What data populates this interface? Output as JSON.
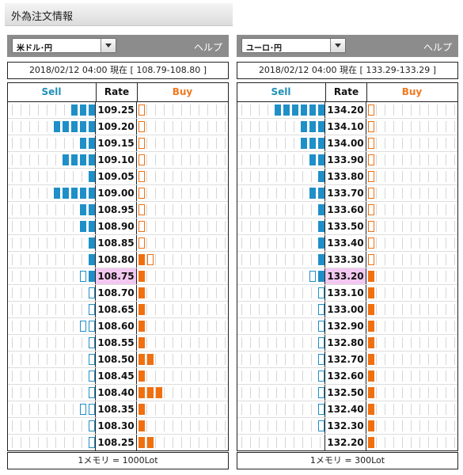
{
  "page_title": "外為注文情報",
  "colors": {
    "sell": "#1f8fc8",
    "buy": "#f07010",
    "current_rate_bg": "#f3c8f0"
  },
  "panels": [
    {
      "pair": "米ドル･円",
      "help": "ヘルプ",
      "status": "2018/02/12  04:00 現在 [ 108.79-108.80 ]",
      "headers": {
        "sell": "Sell",
        "rate": "Rate",
        "buy": "Buy"
      },
      "footer": "1メモリ = 1000Lot",
      "rows": [
        {
          "rate": "109.25",
          "sell": 3,
          "sell_partial": false,
          "buy": 0,
          "buy_partial": true,
          "current": false
        },
        {
          "rate": "109.20",
          "sell": 5,
          "sell_partial": false,
          "buy": 0,
          "buy_partial": true,
          "current": false
        },
        {
          "rate": "109.15",
          "sell": 2,
          "sell_partial": false,
          "buy": 0,
          "buy_partial": true,
          "current": false
        },
        {
          "rate": "109.10",
          "sell": 4,
          "sell_partial": false,
          "buy": 0,
          "buy_partial": true,
          "current": false
        },
        {
          "rate": "109.05",
          "sell": 1,
          "sell_partial": false,
          "buy": 0,
          "buy_partial": true,
          "current": false
        },
        {
          "rate": "109.00",
          "sell": 5,
          "sell_partial": false,
          "buy": 0,
          "buy_partial": true,
          "current": false
        },
        {
          "rate": "108.95",
          "sell": 2,
          "sell_partial": false,
          "buy": 0,
          "buy_partial": true,
          "current": false
        },
        {
          "rate": "108.90",
          "sell": 2,
          "sell_partial": false,
          "buy": 0,
          "buy_partial": true,
          "current": false
        },
        {
          "rate": "108.85",
          "sell": 1,
          "sell_partial": false,
          "buy": 0,
          "buy_partial": true,
          "current": false
        },
        {
          "rate": "108.80",
          "sell": 1,
          "sell_partial": false,
          "buy": 1,
          "buy_partial": true,
          "current": false
        },
        {
          "rate": "108.75",
          "sell": 1,
          "sell_partial": true,
          "buy": 1,
          "buy_partial": false,
          "current": true
        },
        {
          "rate": "108.70",
          "sell": 0,
          "sell_partial": true,
          "buy": 1,
          "buy_partial": false,
          "current": false
        },
        {
          "rate": "108.65",
          "sell": 0,
          "sell_partial": true,
          "buy": 1,
          "buy_partial": false,
          "current": false
        },
        {
          "rate": "108.60",
          "sell": 0,
          "sell_partial": true,
          "sell_extra": 1,
          "buy": 1,
          "buy_partial": false,
          "current": false
        },
        {
          "rate": "108.55",
          "sell": 0,
          "sell_partial": true,
          "buy": 1,
          "buy_partial": false,
          "current": false
        },
        {
          "rate": "108.50",
          "sell": 0,
          "sell_partial": true,
          "buy": 2,
          "buy_partial": false,
          "current": false
        },
        {
          "rate": "108.45",
          "sell": 0,
          "sell_partial": true,
          "buy": 1,
          "buy_partial": false,
          "current": false
        },
        {
          "rate": "108.40",
          "sell": 0,
          "sell_partial": true,
          "buy": 3,
          "buy_partial": false,
          "current": false
        },
        {
          "rate": "108.35",
          "sell": 0,
          "sell_partial": true,
          "sell_extra": 1,
          "buy": 1,
          "buy_partial": false,
          "current": false
        },
        {
          "rate": "108.30",
          "sell": 0,
          "sell_partial": true,
          "buy": 1,
          "buy_partial": false,
          "current": false
        },
        {
          "rate": "108.25",
          "sell": 0,
          "sell_partial": true,
          "buy": 2,
          "buy_partial": false,
          "current": false
        }
      ]
    },
    {
      "pair": "ユーロ･円",
      "help": "ヘルプ",
      "status": "2018/02/12  04:00 現在 [ 133.29-133.29 ]",
      "headers": {
        "sell": "Sell",
        "rate": "Rate",
        "buy": "Buy"
      },
      "footer": "1メモリ = 300Lot",
      "rows": [
        {
          "rate": "134.20",
          "sell": 6,
          "sell_partial": false,
          "buy": 0,
          "buy_partial": true,
          "current": false
        },
        {
          "rate": "134.10",
          "sell": 3,
          "sell_partial": false,
          "buy": 0,
          "buy_partial": true,
          "current": false
        },
        {
          "rate": "134.00",
          "sell": 3,
          "sell_partial": false,
          "buy": 0,
          "buy_partial": true,
          "current": false
        },
        {
          "rate": "133.90",
          "sell": 2,
          "sell_partial": false,
          "buy": 0,
          "buy_partial": true,
          "current": false
        },
        {
          "rate": "133.80",
          "sell": 1,
          "sell_partial": false,
          "buy": 0,
          "buy_partial": true,
          "current": false
        },
        {
          "rate": "133.70",
          "sell": 2,
          "sell_partial": false,
          "buy": 0,
          "buy_partial": true,
          "current": false
        },
        {
          "rate": "133.60",
          "sell": 1,
          "sell_partial": false,
          "buy": 0,
          "buy_partial": true,
          "current": false
        },
        {
          "rate": "133.50",
          "sell": 1,
          "sell_partial": false,
          "buy": 0,
          "buy_partial": true,
          "current": false
        },
        {
          "rate": "133.40",
          "sell": 1,
          "sell_partial": false,
          "buy": 0,
          "buy_partial": true,
          "current": false
        },
        {
          "rate": "133.30",
          "sell": 1,
          "sell_partial": false,
          "buy": 0,
          "buy_partial": true,
          "current": false
        },
        {
          "rate": "133.20",
          "sell": 1,
          "sell_partial": true,
          "buy": 1,
          "buy_partial": false,
          "current": true
        },
        {
          "rate": "133.10",
          "sell": 0,
          "sell_partial": true,
          "buy": 1,
          "buy_partial": false,
          "current": false
        },
        {
          "rate": "133.00",
          "sell": 0,
          "sell_partial": true,
          "buy": 1,
          "buy_partial": false,
          "current": false
        },
        {
          "rate": "132.90",
          "sell": 0,
          "sell_partial": true,
          "buy": 1,
          "buy_partial": false,
          "current": false
        },
        {
          "rate": "132.80",
          "sell": 0,
          "sell_partial": true,
          "buy": 1,
          "buy_partial": false,
          "current": false
        },
        {
          "rate": "132.70",
          "sell": 0,
          "sell_partial": true,
          "buy": 1,
          "buy_partial": false,
          "current": false
        },
        {
          "rate": "132.60",
          "sell": 0,
          "sell_partial": true,
          "buy": 1,
          "buy_partial": false,
          "current": false
        },
        {
          "rate": "132.50",
          "sell": 0,
          "sell_partial": true,
          "buy": 1,
          "buy_partial": false,
          "current": false
        },
        {
          "rate": "132.40",
          "sell": 0,
          "sell_partial": true,
          "buy": 1,
          "buy_partial": false,
          "current": false
        },
        {
          "rate": "132.30",
          "sell": 0,
          "sell_partial": true,
          "buy": 1,
          "buy_partial": false,
          "current": false
        },
        {
          "rate": "132.20",
          "sell": 0,
          "sell_partial": false,
          "buy": 1,
          "buy_partial": false,
          "current": false
        }
      ]
    }
  ]
}
